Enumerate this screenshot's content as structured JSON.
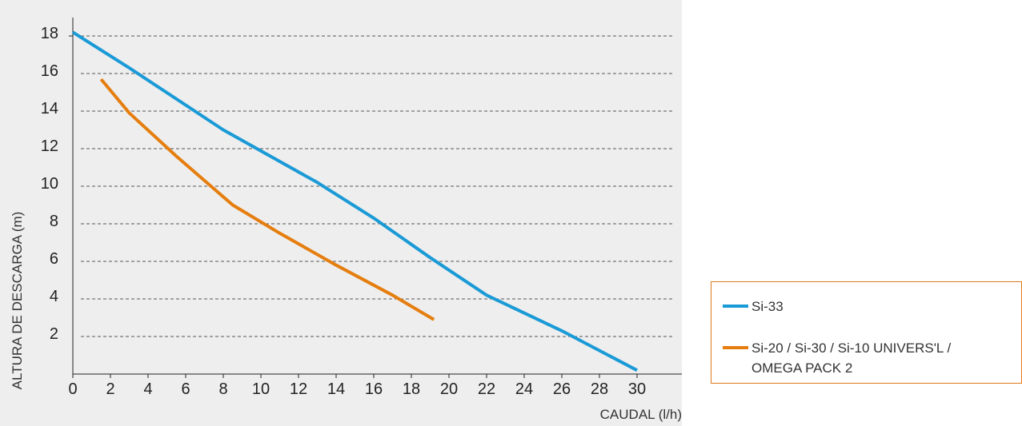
{
  "chart_data": {
    "type": "line",
    "title": "",
    "xlabel": "CAUDAL (l/h)",
    "ylabel": "ALTURA DE DESCARGA (m)",
    "xlim": [
      0,
      32
    ],
    "ylim": [
      0,
      19
    ],
    "x_ticks": [
      0,
      2,
      4,
      6,
      8,
      10,
      12,
      14,
      16,
      18,
      20,
      22,
      24,
      26,
      28,
      30
    ],
    "y_ticks": [
      2,
      4,
      6,
      8,
      10,
      12,
      14,
      16,
      18
    ],
    "grid": "horizontal dashed",
    "legend_position": "bottom-right",
    "series": [
      {
        "name": "Si-33",
        "color": "#1a9ad6",
        "x": [
          0,
          3,
          8,
          13,
          16,
          19,
          22,
          26,
          30
        ],
        "y": [
          18.2,
          16.3,
          13,
          10.2,
          8.3,
          6.2,
          4.2,
          2.3,
          0.2
        ]
      },
      {
        "name": "Si-20 / Si-30 / Si-10 UNIVERS'L /\nOMEGA PACK 2",
        "color": "#e57e0e",
        "x": [
          1.5,
          3,
          5.5,
          8.5,
          11,
          14,
          17,
          19.2
        ],
        "y": [
          15.7,
          13.9,
          11.6,
          9,
          7.5,
          5.8,
          4.2,
          2.9
        ]
      }
    ]
  }
}
